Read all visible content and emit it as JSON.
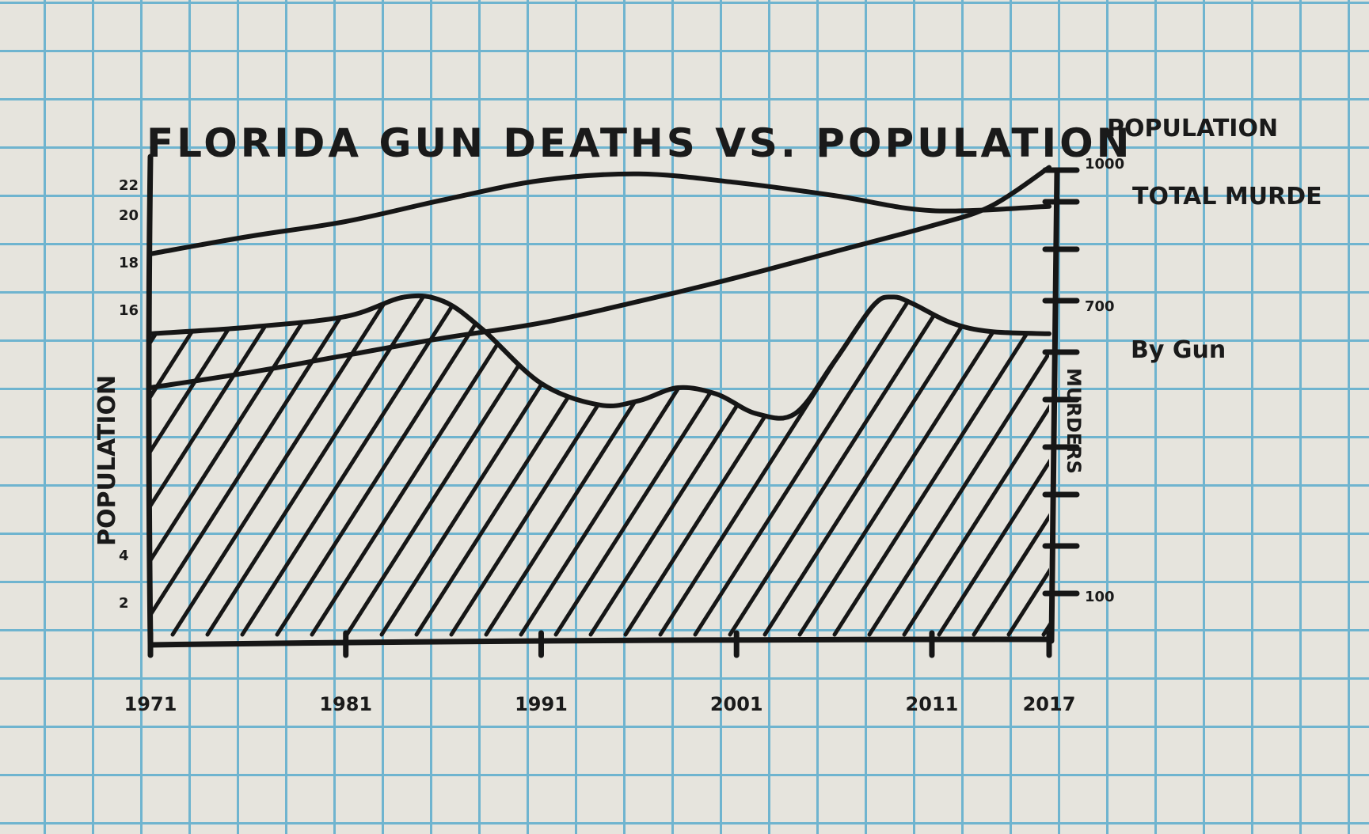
{
  "chart_data": {
    "type": "area",
    "title": "FLORIDA GUN DEATHS VS. POPULATION",
    "top_right_label": "POPULATION",
    "ylabel_left": "POPULATION",
    "ylabel_right": "MURDERS",
    "x_ticks": [
      "1971",
      "1981",
      "1991",
      "2001",
      "2011",
      "2017"
    ],
    "left_ticks": [
      "22",
      "20",
      "18",
      "16",
      "4",
      "2"
    ],
    "right_ticks": [
      "1000",
      "700",
      "100"
    ],
    "series": [
      {
        "name": "TOTAL MURDE",
        "x": [
          1971,
          1976,
          1981,
          1986,
          1991,
          1996,
          2001,
          2006,
          2011,
          2017
        ],
        "values": [
          18,
          18.8,
          19.5,
          20.5,
          21.4,
          21.7,
          21.3,
          20.7,
          20.0,
          20.2
        ]
      },
      {
        "name": "By Gun",
        "x": [
          1971,
          1976,
          1981,
          1984,
          1986,
          1988,
          1991,
          1994,
          1996,
          1998,
          2000,
          2002,
          2004,
          2006,
          2008,
          2009,
          2010,
          2012,
          2014,
          2017
        ],
        "values": [
          14.3,
          14.6,
          15.1,
          16.0,
          15.8,
          14.5,
          12.0,
          11.0,
          11.2,
          11.8,
          11.5,
          10.6,
          10.6,
          13.0,
          15.6,
          16.0,
          15.7,
          14.8,
          14.4,
          14.3
        ]
      },
      {
        "name": "POPULATION",
        "x": [
          1971,
          1976,
          1981,
          1986,
          1991,
          1996,
          2001,
          2006,
          2011,
          2014,
          2017
        ],
        "values": [
          11.8,
          12.5,
          13.3,
          14.1,
          14.8,
          15.8,
          16.9,
          18.1,
          19.3,
          20.2,
          22.0
        ]
      }
    ],
    "xlim": [
      1971,
      2017
    ],
    "ylim": [
      0,
      22.5
    ],
    "hatched_series": "By Gun",
    "grid": "graph paper"
  }
}
